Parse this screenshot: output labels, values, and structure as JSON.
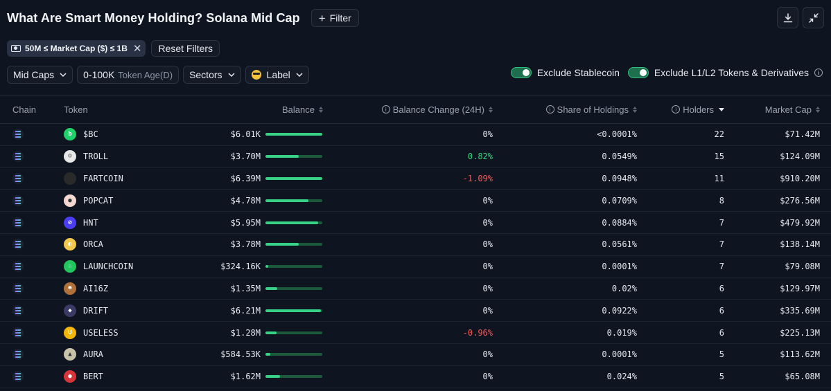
{
  "title": "What Are Smart Money Holding? Solana Mid Cap",
  "filter_button": "Filter",
  "active_filter": "50M ≤ Market Cap ($) ≤ 1B",
  "reset_label": "Reset Filters",
  "filters": {
    "caps": "Mid Caps",
    "age_range": "0-100K",
    "age_label": "Token Age(D)",
    "sectors": "Sectors",
    "label": "Label"
  },
  "toggles": {
    "stablecoin": "Exclude Stablecoin",
    "l1l2": "Exclude L1/L2 Tokens & Derivatives"
  },
  "columns": {
    "chain": "Chain",
    "token": "Token",
    "balance": "Balance",
    "change": "Balance Change (24H)",
    "share": "Share of Holdings",
    "holders": "Holders",
    "mcap": "Market Cap"
  },
  "colors": {
    "accent": "#38d287",
    "negative": "#f05b5b",
    "background": "#0f1520"
  },
  "rows": [
    {
      "token": "$BC",
      "balance": "$6.01K",
      "fill": 1.0,
      "change": "0%",
      "share": "<0.0001%",
      "holders": "22",
      "mcap": "$71.42M",
      "icon_color": "#1fd16b",
      "icon_glyph": "b"
    },
    {
      "token": "TROLL",
      "balance": "$3.70M",
      "fill": 0.58,
      "change": "0.82%",
      "share": "0.0549%",
      "holders": "15",
      "mcap": "$124.09M",
      "icon_color": "#e8e8e8",
      "icon_glyph": "☺"
    },
    {
      "token": "FARTCOIN",
      "balance": "$6.39M",
      "fill": 1.0,
      "change": "-1.09%",
      "share": "0.0948%",
      "holders": "11",
      "mcap": "$910.20M",
      "icon_color": "#2a2a2a",
      "icon_glyph": ""
    },
    {
      "token": "POPCAT",
      "balance": "$4.78M",
      "fill": 0.75,
      "change": "0%",
      "share": "0.0709%",
      "holders": "8",
      "mcap": "$276.56M",
      "icon_color": "#f3d9d1",
      "icon_glyph": "●"
    },
    {
      "token": "HNT",
      "balance": "$5.95M",
      "fill": 0.93,
      "change": "0%",
      "share": "0.0884%",
      "holders": "7",
      "mcap": "$479.92M",
      "icon_color": "#4b3df5",
      "icon_glyph": "⊘"
    },
    {
      "token": "ORCA",
      "balance": "$3.78M",
      "fill": 0.59,
      "change": "0%",
      "share": "0.0561%",
      "holders": "7",
      "mcap": "$138.14M",
      "icon_color": "#f2c94c",
      "icon_glyph": "◐"
    },
    {
      "token": "LAUNCHCOIN",
      "balance": "$324.16K",
      "fill": 0.05,
      "change": "0%",
      "share": "0.0001%",
      "holders": "7",
      "mcap": "$79.08M",
      "icon_color": "#22c55e",
      "icon_glyph": "♘"
    },
    {
      "token": "AI16Z",
      "balance": "$1.35M",
      "fill": 0.21,
      "change": "0%",
      "share": "0.02%",
      "holders": "6",
      "mcap": "$129.97M",
      "icon_color": "#b0703a",
      "icon_glyph": "☻"
    },
    {
      "token": "DRIFT",
      "balance": "$6.21M",
      "fill": 0.97,
      "change": "0%",
      "share": "0.0922%",
      "holders": "6",
      "mcap": "$335.69M",
      "icon_color": "#3b3a67",
      "icon_glyph": "◆"
    },
    {
      "token": "USELESS",
      "balance": "$1.28M",
      "fill": 0.2,
      "change": "-0.96%",
      "share": "0.019%",
      "holders": "6",
      "mcap": "$225.13M",
      "icon_color": "#f2b705",
      "icon_glyph": "U"
    },
    {
      "token": "AURA",
      "balance": "$584.53K",
      "fill": 0.09,
      "change": "0%",
      "share": "0.0001%",
      "holders": "5",
      "mcap": "$113.62M",
      "icon_color": "#c8c2a8",
      "icon_glyph": "▲"
    },
    {
      "token": "BERT",
      "balance": "$1.62M",
      "fill": 0.25,
      "change": "0%",
      "share": "0.024%",
      "holders": "5",
      "mcap": "$65.08M",
      "icon_color": "#d6363a",
      "icon_glyph": "●"
    }
  ]
}
